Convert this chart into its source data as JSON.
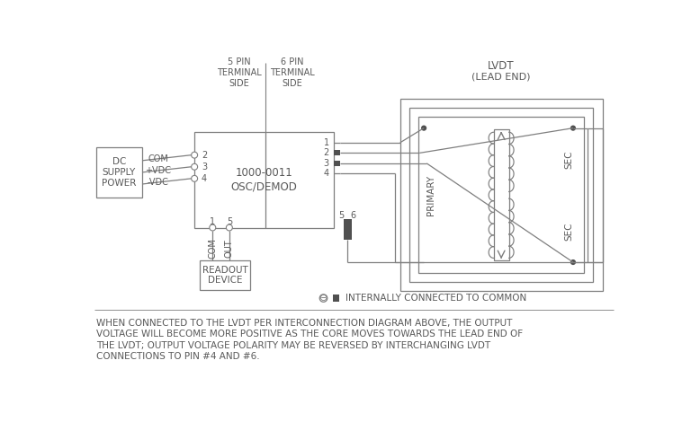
{
  "bg_color": "#ffffff",
  "line_color": "#7f7f7f",
  "text_color": "#595959",
  "title_lvdt": "LVDT",
  "title_lvdt2": "(LEAD END)",
  "label_5pin": "5 PIN\nTERMINAL\nSIDE",
  "label_6pin": "6 PIN\nTERMINAL\nSIDE",
  "label_dc": "DC\nSUPPLY\nPOWER",
  "label_osc": "1000-0011\nOSC/DEMOD",
  "label_com": "COM",
  "label_vdc_pos": "+VDC",
  "label_vdc_neg": "-VDC",
  "label_primary": "PRIMARY",
  "label_sec": "SEC",
  "label_readout": "READOUT\nDEVICE",
  "label_com2": "COM",
  "label_out": "OUT",
  "legend_text": "INTERNALLY CONNECTED TO COMMON",
  "footnote_lines": [
    "WHEN CONNECTED TO THE LVDT PER INTERCONNECTION DIAGRAM ABOVE, THE OUTPUT",
    "VOLTAGE WILL BECOME MORE POSITIVE AS THE CORE MOVES TOWARDS THE LEAD END OF",
    "THE LVDT; OUTPUT VOLTAGE POLARITY MAY BE REVERSED BY INTERCHANGING LVDT",
    "CONNECTIONS TO PIN #4 AND #6."
  ]
}
